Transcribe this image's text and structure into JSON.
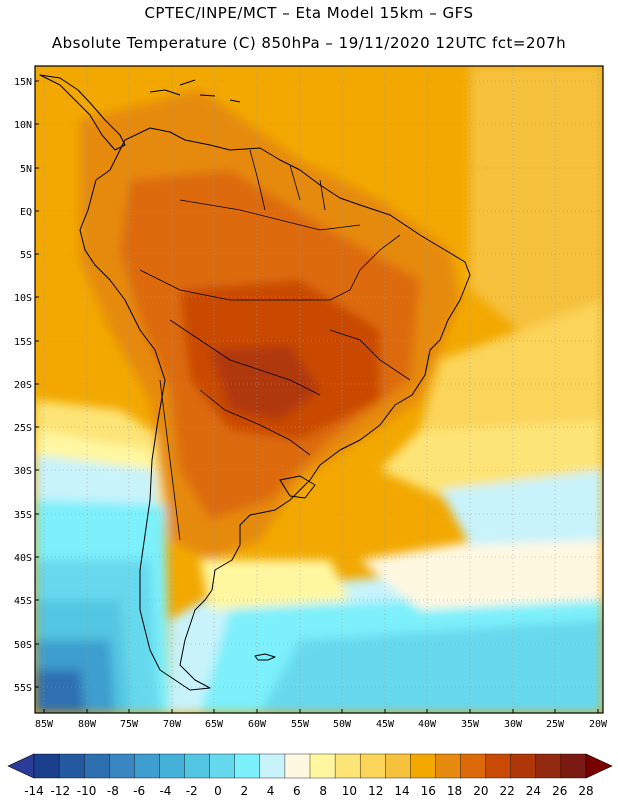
{
  "header": {
    "line1": "CPTEC/INPE/MCT –  Eta Model 15km – GFS",
    "line2": "Absolute Temperature (C) 850hPa – 19/11/2020 12UTC fct=207h"
  },
  "axes": {
    "lat_labels": [
      "15N",
      "10N",
      "5N",
      "EQ",
      "5S",
      "10S",
      "15S",
      "20S",
      "25S",
      "30S",
      "35S",
      "40S",
      "45S",
      "50S",
      "55S"
    ],
    "lon_labels": [
      "85W",
      "80W",
      "75W",
      "70W",
      "65W",
      "60W",
      "55W",
      "50W",
      "45W",
      "40W",
      "35W",
      "30W",
      "25W",
      "20W"
    ]
  },
  "colorbar": {
    "labels": [
      "-14",
      "-12",
      "-10",
      "-8",
      "-6",
      "-4",
      "-2",
      "0",
      "2",
      "4",
      "6",
      "8",
      "10",
      "12",
      "14",
      "16",
      "18",
      "20",
      "22",
      "24",
      "26",
      "28"
    ],
    "colors": [
      "#1a3f8c",
      "#2459a0",
      "#2e6fb0",
      "#3a86c0",
      "#3d9ecf",
      "#45b1d9",
      "#52c6e3",
      "#66d9ee",
      "#7cf0fb",
      "#c8f3fb",
      "#fff8e1",
      "#fff7a0",
      "#fde476",
      "#fbd45a",
      "#f6c13c",
      "#f2a800",
      "#e68a10",
      "#dd6a0a",
      "#c94a06",
      "#b03808",
      "#932a10",
      "#7a1a12"
    ],
    "under_color": "#2a3c98",
    "over_color": "#7a0000"
  }
}
